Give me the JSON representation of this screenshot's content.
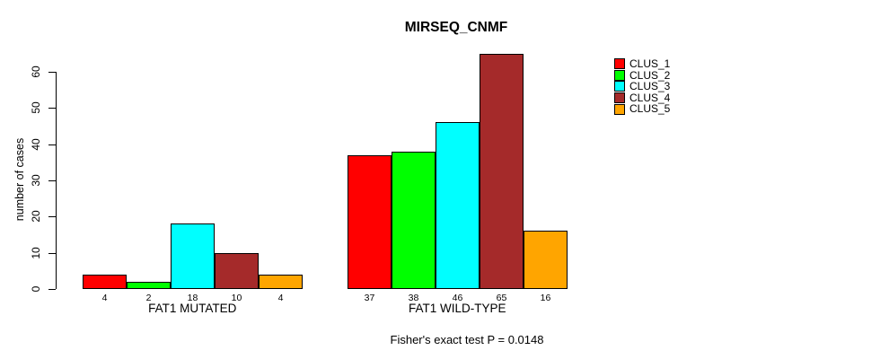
{
  "chart_data": {
    "type": "bar",
    "title": "MIRSEQ_CNMF",
    "ylabel": "number of cases",
    "xlabel": "",
    "annotation": "Fisher's exact test P = 0.0148",
    "categories": [
      "FAT1 MUTATED",
      "FAT1 WILD-TYPE"
    ],
    "series": [
      {
        "name": "CLUS_1",
        "color": "#FF0000",
        "values": [
          4,
          37
        ]
      },
      {
        "name": "CLUS_2",
        "color": "#00FF00",
        "values": [
          2,
          38
        ]
      },
      {
        "name": "CLUS_3",
        "color": "#00FFFF",
        "values": [
          18,
          46
        ]
      },
      {
        "name": "CLUS_4",
        "color": "#A52A2A",
        "values": [
          10,
          65
        ]
      },
      {
        "name": "CLUS_5",
        "color": "#FFA500",
        "values": [
          4,
          16
        ]
      }
    ],
    "yticks": [
      0,
      10,
      20,
      30,
      40,
      50,
      60
    ],
    "ylim": [
      0,
      65
    ],
    "grid": false,
    "bar_value_labels_shown": true,
    "legend_position": "right-outside",
    "axis_color": "#000000",
    "bar_border_color": "#000000",
    "background_color": "#FFFFFF"
  }
}
